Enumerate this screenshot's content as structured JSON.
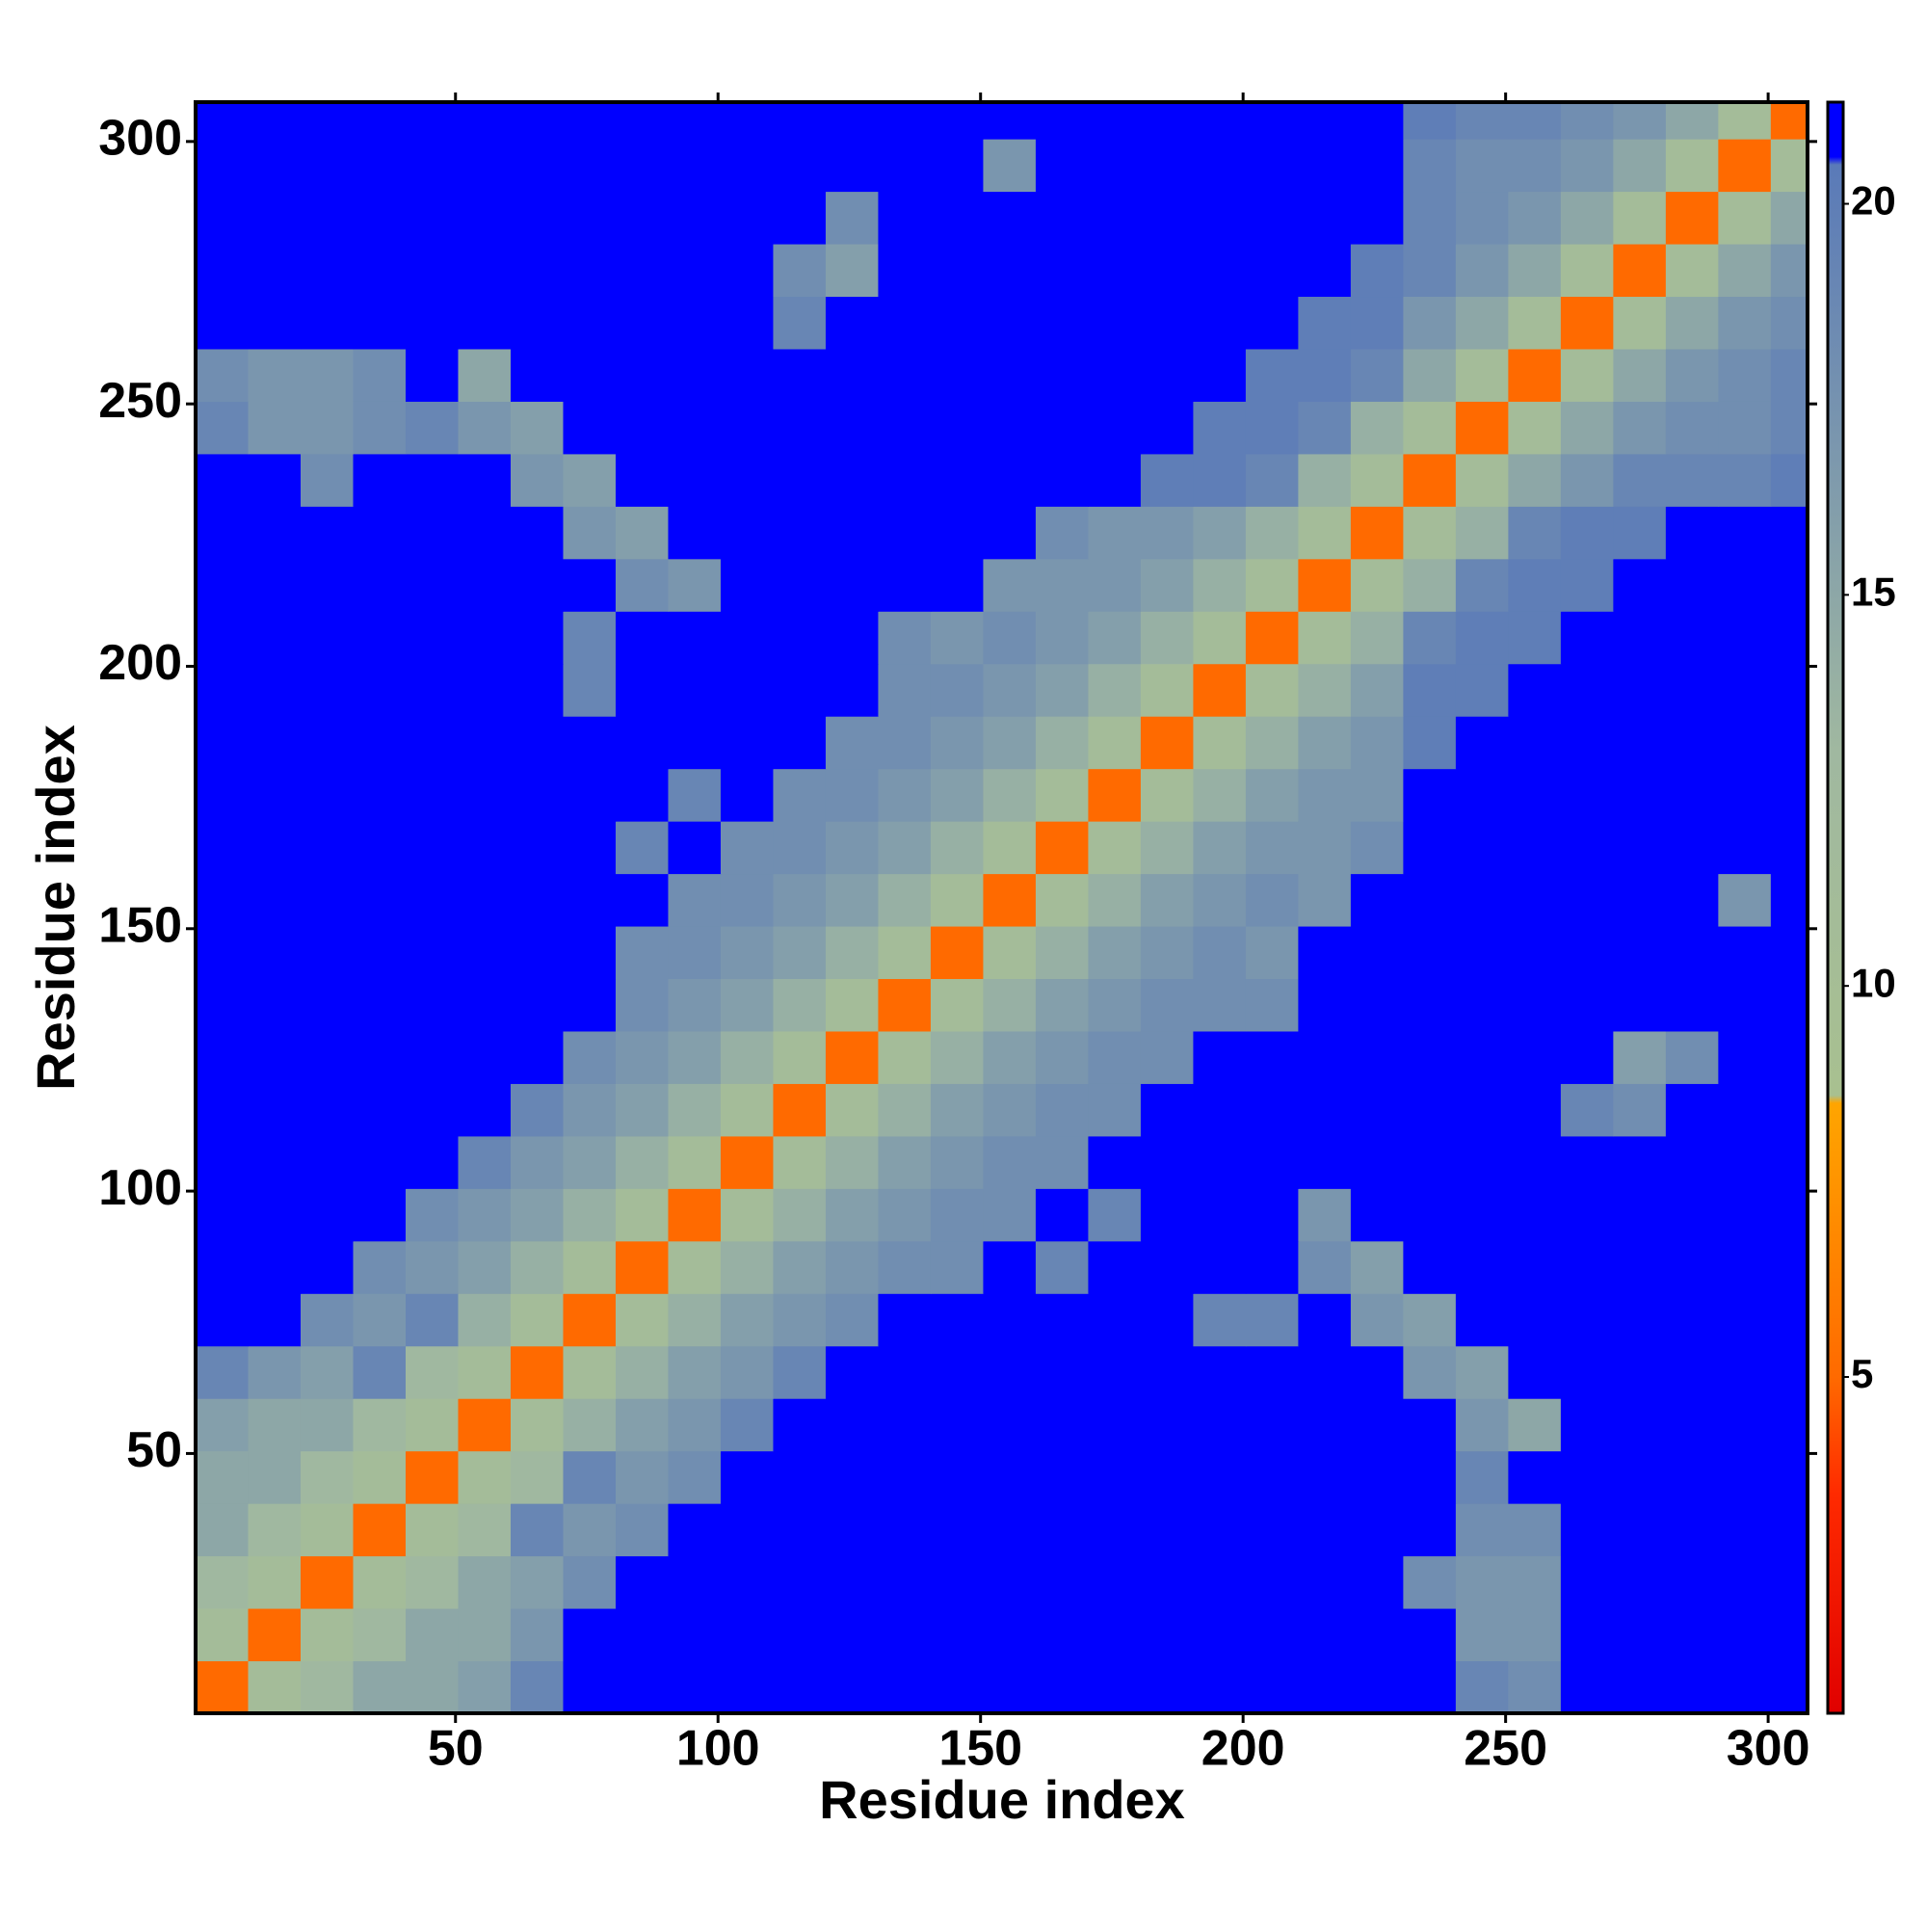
{
  "chart_data": {
    "type": "heatmap",
    "xlabel": "Residue index",
    "ylabel": "Residue index",
    "xlim": [
      0.5,
      307.5
    ],
    "ylim": [
      0.5,
      307.5
    ],
    "xticks": [
      50,
      100,
      150,
      200,
      250,
      300
    ],
    "yticks": [
      50,
      100,
      150,
      200,
      250,
      300
    ],
    "bins": [
      0.5,
      10.5,
      20.5,
      30.5,
      40.5,
      50.5,
      60.5,
      70.5,
      80.5,
      90.5,
      100.5,
      110.5,
      120.5,
      130.5,
      140.5,
      150.5,
      160.5,
      170.5,
      180.5,
      190.5,
      200.5,
      210.5,
      220.5,
      230.5,
      240.5,
      250.5,
      260.5,
      270.5,
      280.5,
      290.5,
      300.5,
      307.5
    ],
    "colorbar": {
      "lim": [
        0.7,
        21.3
      ],
      "ticks": [
        5,
        10,
        15,
        20
      ],
      "colorscale": [
        [
          0.7,
          "#e00000"
        ],
        [
          3.5,
          "#ff2a00"
        ],
        [
          5,
          "#ff6a00"
        ],
        [
          8.5,
          "#ffa500"
        ],
        [
          8.6,
          "#a8c090"
        ],
        [
          13,
          "#a0b8a0"
        ],
        [
          17,
          "#7a96ae"
        ],
        [
          20.5,
          "#5a7ab8"
        ],
        [
          20.6,
          "#0000ff"
        ],
        [
          21.3,
          "#0000ff"
        ]
      ]
    },
    "z": [
      [
        5,
        11,
        13,
        15,
        15,
        16,
        19,
        21,
        21,
        21,
        21,
        21,
        21,
        21,
        21,
        21,
        21,
        21,
        21,
        21,
        21,
        21,
        21,
        21,
        19,
        18,
        21,
        21,
        21,
        21,
        21
      ],
      [
        11,
        5,
        11,
        13,
        15,
        15,
        17,
        21,
        21,
        21,
        21,
        21,
        21,
        21,
        21,
        21,
        21,
        21,
        21,
        21,
        21,
        21,
        21,
        21,
        17,
        17,
        21,
        21,
        21,
        21,
        21
      ],
      [
        13,
        11,
        5,
        11,
        13,
        15,
        16,
        18,
        21,
        21,
        21,
        21,
        21,
        21,
        21,
        21,
        21,
        21,
        21,
        21,
        21,
        21,
        21,
        18,
        17,
        17,
        21,
        21,
        21,
        21,
        21
      ],
      [
        15,
        13,
        11,
        5,
        11,
        13,
        19,
        17,
        18,
        21,
        21,
        21,
        21,
        21,
        21,
        21,
        21,
        21,
        21,
        21,
        21,
        21,
        21,
        21,
        18,
        18,
        21,
        21,
        21,
        21,
        21
      ],
      [
        15,
        15,
        13,
        11,
        5,
        11,
        13,
        19,
        17,
        18,
        21,
        21,
        21,
        21,
        21,
        21,
        21,
        21,
        21,
        21,
        21,
        21,
        21,
        21,
        19,
        21,
        21,
        21,
        21,
        21,
        21
      ],
      [
        16,
        15,
        15,
        13,
        11,
        5,
        11,
        14,
        16,
        17,
        19,
        21,
        21,
        21,
        21,
        21,
        21,
        21,
        21,
        21,
        21,
        21,
        21,
        21,
        17,
        15,
        21,
        21,
        21,
        21,
        21
      ],
      [
        19,
        17,
        16,
        19,
        13,
        11,
        5,
        11,
        14,
        16,
        17,
        19,
        21,
        21,
        21,
        21,
        21,
        21,
        21,
        21,
        21,
        21,
        21,
        17,
        16,
        21,
        21,
        21,
        21,
        21,
        21
      ],
      [
        21,
        21,
        18,
        17,
        19,
        14,
        11,
        5,
        11,
        14,
        16,
        17,
        18,
        21,
        21,
        21,
        21,
        21,
        21,
        19,
        19,
        21,
        17,
        16,
        21,
        21,
        21,
        21,
        21,
        21,
        21
      ],
      [
        21,
        21,
        21,
        18,
        17,
        16,
        14,
        11,
        5,
        11,
        14,
        16,
        17,
        18,
        18,
        21,
        19,
        21,
        21,
        21,
        21,
        18,
        16,
        21,
        21,
        21,
        21,
        21,
        21,
        21,
        21
      ],
      [
        21,
        21,
        21,
        21,
        18,
        17,
        16,
        14,
        11,
        5,
        11,
        14,
        16,
        17,
        18,
        18,
        21,
        19,
        21,
        21,
        21,
        17,
        21,
        21,
        21,
        21,
        21,
        21,
        21,
        21,
        21
      ],
      [
        21,
        21,
        21,
        21,
        21,
        19,
        17,
        16,
        14,
        11,
        5,
        11,
        14,
        16,
        17,
        18,
        18,
        21,
        21,
        21,
        21,
        21,
        21,
        21,
        21,
        21,
        21,
        21,
        21,
        21,
        21
      ],
      [
        21,
        21,
        21,
        21,
        21,
        21,
        19,
        17,
        16,
        14,
        11,
        5,
        11,
        14,
        16,
        17,
        18,
        18,
        21,
        21,
        21,
        21,
        21,
        21,
        21,
        21,
        19,
        18,
        21,
        21,
        21
      ],
      [
        21,
        21,
        21,
        21,
        21,
        21,
        21,
        18,
        17,
        16,
        14,
        11,
        5,
        11,
        14,
        16,
        17,
        18,
        18,
        21,
        21,
        21,
        21,
        21,
        21,
        21,
        21,
        16,
        18,
        21,
        21
      ],
      [
        21,
        21,
        21,
        21,
        21,
        21,
        21,
        21,
        18,
        17,
        16,
        14,
        11,
        5,
        11,
        14,
        16,
        17,
        18,
        18,
        18,
        21,
        21,
        21,
        21,
        21,
        21,
        21,
        21,
        21,
        21
      ],
      [
        21,
        21,
        21,
        21,
        21,
        21,
        21,
        21,
        18,
        18,
        17,
        16,
        14,
        11,
        5,
        11,
        14,
        16,
        17,
        18,
        17,
        21,
        21,
        21,
        21,
        21,
        21,
        21,
        21,
        21,
        21
      ],
      [
        21,
        21,
        21,
        21,
        21,
        21,
        21,
        21,
        21,
        18,
        18,
        17,
        16,
        14,
        11,
        5,
        11,
        14,
        16,
        17,
        18,
        17,
        21,
        21,
        21,
        21,
        21,
        21,
        21,
        17,
        21
      ],
      [
        21,
        21,
        21,
        21,
        21,
        21,
        21,
        21,
        19,
        21,
        18,
        18,
        17,
        16,
        14,
        11,
        5,
        11,
        14,
        16,
        17,
        17,
        18,
        21,
        21,
        21,
        21,
        21,
        21,
        21,
        21
      ],
      [
        21,
        21,
        21,
        21,
        21,
        21,
        21,
        21,
        21,
        19,
        21,
        18,
        18,
        17,
        16,
        14,
        11,
        5,
        11,
        14,
        16,
        17,
        17,
        21,
        21,
        21,
        21,
        21,
        21,
        21,
        21
      ],
      [
        21,
        21,
        21,
        21,
        21,
        21,
        21,
        21,
        21,
        21,
        21,
        21,
        18,
        18,
        17,
        16,
        14,
        11,
        5,
        11,
        14,
        16,
        17,
        20,
        21,
        21,
        21,
        21,
        21,
        21,
        21
      ],
      [
        21,
        21,
        21,
        21,
        21,
        21,
        21,
        19,
        21,
        21,
        21,
        21,
        21,
        18,
        18,
        17,
        16,
        14,
        11,
        5,
        11,
        14,
        16,
        20,
        20,
        21,
        21,
        21,
        21,
        21,
        21
      ],
      [
        21,
        21,
        21,
        21,
        21,
        21,
        21,
        19,
        21,
        21,
        21,
        21,
        21,
        18,
        17,
        18,
        17,
        16,
        14,
        11,
        5,
        11,
        14,
        19,
        20,
        20,
        21,
        21,
        21,
        21,
        21
      ],
      [
        21,
        21,
        21,
        21,
        21,
        21,
        21,
        21,
        18,
        17,
        21,
        21,
        21,
        21,
        21,
        17,
        17,
        17,
        16,
        14,
        11,
        5,
        11,
        14,
        19,
        20,
        20,
        21,
        21,
        21,
        21
      ],
      [
        21,
        21,
        21,
        21,
        21,
        21,
        21,
        17,
        16,
        21,
        21,
        21,
        21,
        21,
        21,
        21,
        18,
        17,
        17,
        16,
        14,
        11,
        5,
        11,
        14,
        19,
        20,
        20,
        21,
        21,
        21
      ],
      [
        21,
        21,
        18,
        21,
        21,
        21,
        17,
        16,
        21,
        21,
        21,
        21,
        21,
        21,
        21,
        21,
        21,
        21,
        20,
        20,
        19,
        14,
        11,
        5,
        11,
        15,
        17,
        19,
        19,
        19,
        20
      ],
      [
        19,
        17,
        17,
        18,
        19,
        17,
        16,
        21,
        21,
        21,
        21,
        21,
        21,
        21,
        21,
        21,
        21,
        21,
        21,
        20,
        20,
        19,
        14,
        11,
        5,
        11,
        15,
        17,
        18,
        18,
        19
      ],
      [
        18,
        17,
        17,
        18,
        21,
        15,
        21,
        21,
        21,
        21,
        21,
        21,
        21,
        21,
        21,
        21,
        21,
        21,
        21,
        21,
        20,
        20,
        19,
        15,
        11,
        5,
        11,
        15,
        17,
        18,
        19
      ],
      [
        21,
        21,
        21,
        21,
        21,
        21,
        21,
        21,
        21,
        21,
        21,
        19,
        21,
        21,
        21,
        21,
        21,
        21,
        21,
        21,
        21,
        20,
        20,
        17,
        15,
        11,
        5,
        11,
        15,
        17,
        18
      ],
      [
        21,
        21,
        21,
        21,
        21,
        21,
        21,
        21,
        21,
        21,
        21,
        18,
        16,
        21,
        21,
        21,
        21,
        21,
        21,
        21,
        21,
        21,
        20,
        19,
        17,
        15,
        11,
        5,
        11,
        15,
        17
      ],
      [
        21,
        21,
        21,
        21,
        21,
        21,
        21,
        21,
        21,
        21,
        21,
        21,
        18,
        21,
        21,
        21,
        21,
        21,
        21,
        21,
        21,
        21,
        21,
        19,
        18,
        17,
        15,
        11,
        5,
        11,
        15
      ],
      [
        21,
        21,
        21,
        21,
        21,
        21,
        21,
        21,
        21,
        21,
        21,
        21,
        21,
        21,
        21,
        17,
        21,
        21,
        21,
        21,
        21,
        21,
        21,
        19,
        18,
        18,
        17,
        15,
        11,
        5,
        11
      ],
      [
        21,
        21,
        21,
        21,
        21,
        21,
        21,
        21,
        21,
        21,
        21,
        21,
        21,
        21,
        21,
        21,
        21,
        21,
        21,
        21,
        21,
        21,
        21,
        20,
        19,
        19,
        18,
        17,
        15,
        11,
        5
      ]
    ]
  }
}
